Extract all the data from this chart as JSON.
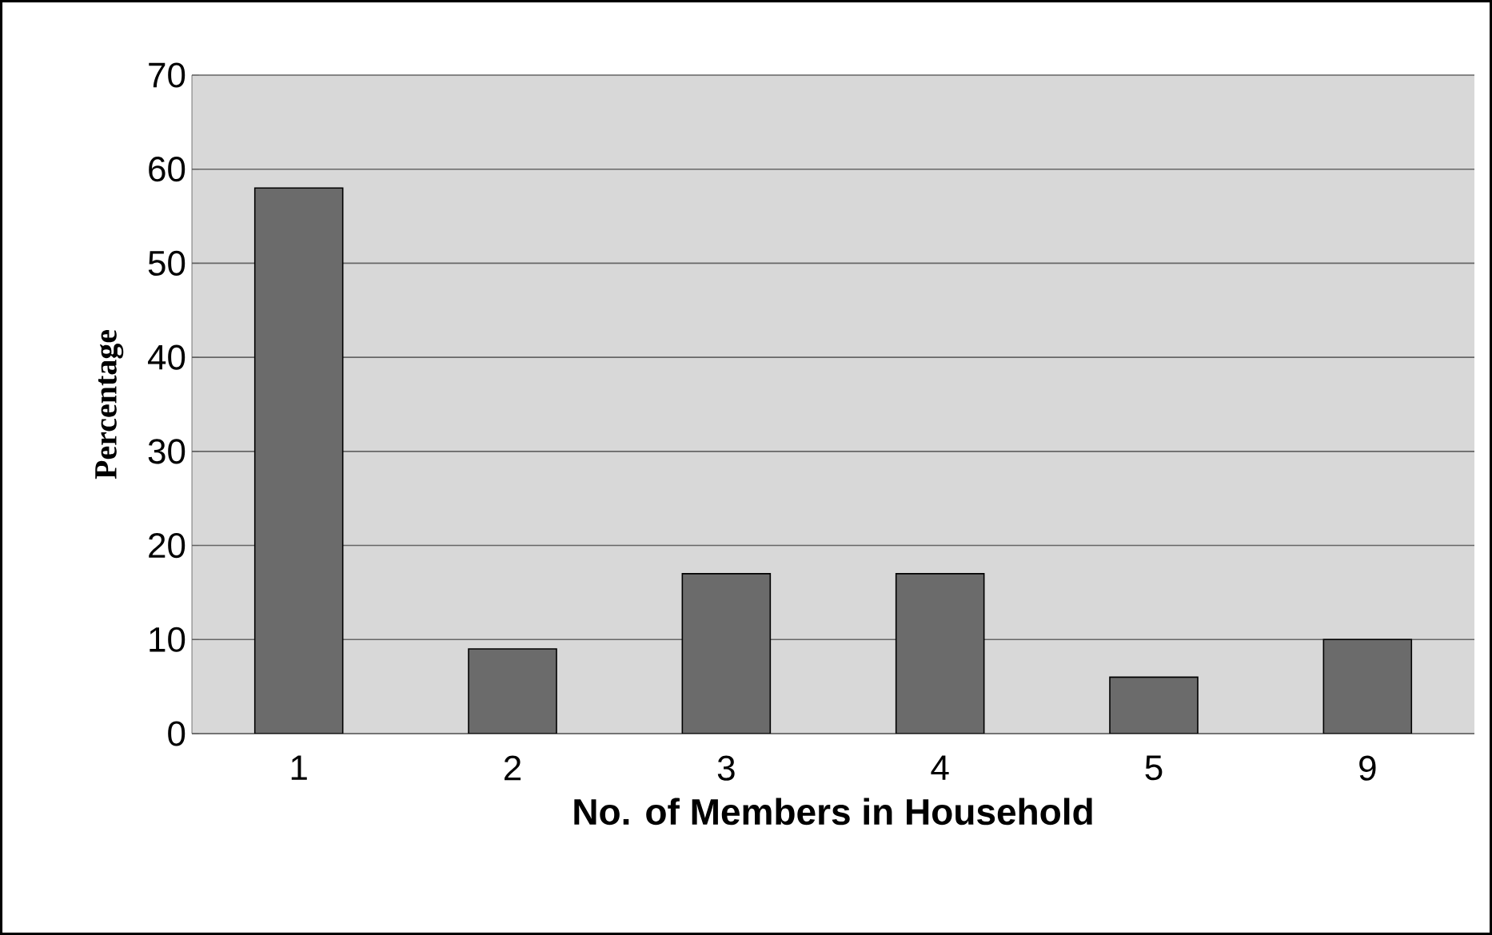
{
  "chart_data": {
    "type": "bar",
    "xlabel": "No. of Members in Household",
    "ylabel": "Percentage",
    "categories": [
      "1",
      "2",
      "3",
      "4",
      "5",
      "9"
    ],
    "values": [
      58,
      9,
      17,
      17,
      6,
      10
    ],
    "color": "#6b6b6b",
    "ylim": [
      0,
      70
    ],
    "yticks": [
      0,
      10,
      20,
      30,
      40,
      50,
      60,
      70
    ],
    "grid": "y"
  }
}
